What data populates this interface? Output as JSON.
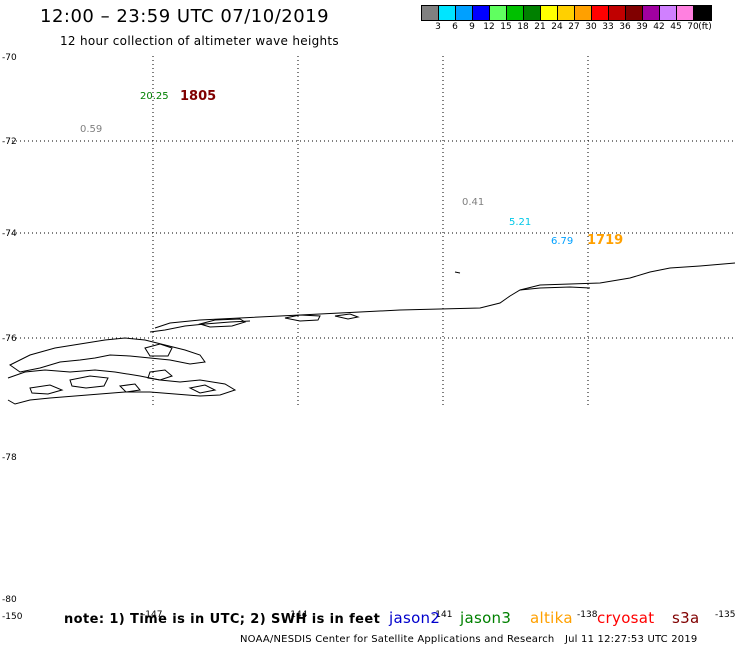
{
  "header": {
    "title": "12:00 – 23:59 UTC 07/10/2019",
    "subtitle": "12 hour collection of altimeter wave heights"
  },
  "colorbar": {
    "unit": "(ft)",
    "colors": [
      "#808080",
      "#00e5ff",
      "#00a0ff",
      "#0000ff",
      "#60ff60",
      "#00c000",
      "#008000",
      "#ffff00",
      "#ffd000",
      "#ffa000",
      "#ff0000",
      "#c00000",
      "#800000",
      "#a000a0",
      "#d080ff",
      "#ff80e0",
      "#000000"
    ],
    "labels": [
      "3",
      "6",
      "9",
      "12",
      "15",
      "18",
      "21",
      "24",
      "27",
      "30",
      "33",
      "36",
      "39",
      "42",
      "45",
      "70"
    ]
  },
  "axes": {
    "lat_labels": [
      "-70",
      "-72",
      "-74",
      "-76",
      "-78",
      "-80"
    ],
    "lon_labels": [
      "-150",
      "-147",
      "-144",
      "-141",
      "-138",
      "-135"
    ]
  },
  "observations": [
    {
      "text": "20.25",
      "color": "#008000",
      "size": "small"
    },
    {
      "text": "1805",
      "color": "#800000",
      "size": "big"
    },
    {
      "text": "0.59",
      "color": "#808080",
      "size": "small"
    },
    {
      "text": "0.41",
      "color": "#808080",
      "size": "small"
    },
    {
      "text": "5.21",
      "color": "#00c8e8",
      "size": "small"
    },
    {
      "text": "6.79",
      "color": "#00a0ff",
      "size": "small"
    },
    {
      "text": "1719",
      "color": "#ffa000",
      "size": "big"
    }
  ],
  "footer": {
    "note": "note: 1) Time is in UTC; 2) SWH is in feet",
    "satellites": [
      {
        "name": "jason2",
        "color": "#0000cc"
      },
      {
        "name": "jason3",
        "color": "#008000"
      },
      {
        "name": "altika",
        "color": "#ffa000"
      },
      {
        "name": "cryosat",
        "color": "#ff0000"
      },
      {
        "name": "s3a",
        "color": "#800000"
      }
    ],
    "credit": "NOAA/NESDIS Center for Satellite Applications and Research",
    "timestamp": "Jul 11 12:27:53 UTC 2019"
  }
}
